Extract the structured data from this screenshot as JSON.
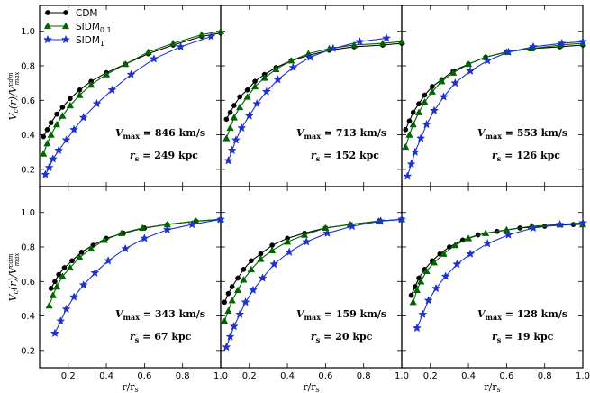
{
  "chart_data": {
    "type": "line",
    "layout": "2x3 panel grid with shared axes",
    "xlabel": "r/r_s",
    "ylabel": "V_c(r)/V_max^cdm",
    "xlim": [
      0.05,
      1.0
    ],
    "ylim": [
      0.1,
      1.15
    ],
    "xticks": [
      "0.2",
      "0.4",
      "0.6",
      "0.8",
      "1.0"
    ],
    "yticks": [
      "0.2",
      "0.4",
      "0.6",
      "0.8",
      "1.0"
    ],
    "legend": {
      "placement": "top-left of first panel",
      "entries": [
        {
          "label": "CDM",
          "color": "#000000",
          "marker": "circle"
        },
        {
          "label": "SIDM",
          "subscript": "0.1",
          "color": "#006400",
          "marker": "triangle"
        },
        {
          "label": "SIDM",
          "subscript": "1",
          "color": "#1f33cc",
          "marker": "star"
        }
      ]
    },
    "panels": [
      {
        "annotation": {
          "vmax_label": "V",
          "vmax_sub": "max",
          "vmax_eq": "= 846 km/s",
          "rs_label": "r",
          "rs_sub": "s",
          "rs_eq": "= 249 kpc"
        },
        "series": [
          {
            "name": "CDM",
            "x": [
              0.07,
              0.09,
              0.11,
              0.14,
              0.17,
              0.21,
              0.26,
              0.32,
              0.4,
              0.5,
              0.62,
              0.75,
              0.9,
              1.0
            ],
            "y": [
              0.39,
              0.43,
              0.47,
              0.52,
              0.56,
              0.61,
              0.66,
              0.71,
              0.76,
              0.81,
              0.87,
              0.92,
              0.97,
              0.99
            ]
          },
          {
            "name": "SIDM_0.1",
            "x": [
              0.07,
              0.09,
              0.11,
              0.14,
              0.17,
              0.21,
              0.26,
              0.32,
              0.4,
              0.5,
              0.62,
              0.75,
              0.9,
              1.0
            ],
            "y": [
              0.29,
              0.35,
              0.4,
              0.46,
              0.51,
              0.57,
              0.63,
              0.69,
              0.75,
              0.81,
              0.88,
              0.93,
              0.98,
              1.0
            ]
          },
          {
            "name": "SIDM_1",
            "x": [
              0.08,
              0.1,
              0.12,
              0.15,
              0.19,
              0.23,
              0.28,
              0.35,
              0.43,
              0.53,
              0.65,
              0.79,
              0.95
            ],
            "y": [
              0.17,
              0.21,
              0.26,
              0.31,
              0.37,
              0.43,
              0.5,
              0.58,
              0.66,
              0.75,
              0.84,
              0.91,
              0.97
            ]
          }
        ]
      },
      {
        "annotation": {
          "vmax_label": "V",
          "vmax_sub": "max",
          "vmax_eq": "= 713 km/s",
          "rs_label": "r",
          "rs_sub": "s",
          "rs_eq": "= 152 kpc"
        },
        "series": [
          {
            "name": "CDM",
            "x": [
              0.08,
              0.1,
              0.12,
              0.15,
              0.19,
              0.23,
              0.28,
              0.34,
              0.42,
              0.51,
              0.62,
              0.75,
              0.9,
              1.0
            ],
            "y": [
              0.49,
              0.53,
              0.57,
              0.62,
              0.66,
              0.71,
              0.75,
              0.79,
              0.83,
              0.86,
              0.89,
              0.91,
              0.92,
              0.93
            ]
          },
          {
            "name": "SIDM_0.1",
            "x": [
              0.08,
              0.1,
              0.12,
              0.15,
              0.19,
              0.23,
              0.28,
              0.34,
              0.42,
              0.51,
              0.62,
              0.75,
              0.9,
              1.0
            ],
            "y": [
              0.38,
              0.44,
              0.5,
              0.56,
              0.62,
              0.68,
              0.73,
              0.78,
              0.83,
              0.87,
              0.9,
              0.92,
              0.93,
              0.94
            ]
          },
          {
            "name": "SIDM_1",
            "x": [
              0.09,
              0.11,
              0.13,
              0.16,
              0.2,
              0.24,
              0.29,
              0.35,
              0.43,
              0.52,
              0.64,
              0.78,
              0.92
            ],
            "y": [
              0.25,
              0.31,
              0.37,
              0.44,
              0.51,
              0.58,
              0.65,
              0.72,
              0.79,
              0.85,
              0.9,
              0.94,
              0.96
            ]
          }
        ]
      },
      {
        "annotation": {
          "vmax_label": "V",
          "vmax_sub": "max",
          "vmax_eq": "= 553 km/s",
          "rs_label": "r",
          "rs_sub": "s",
          "rs_eq": "= 126 kpc"
        },
        "series": [
          {
            "name": "CDM",
            "x": [
              0.07,
              0.09,
              0.11,
              0.14,
              0.17,
              0.21,
              0.26,
              0.32,
              0.4,
              0.49,
              0.6,
              0.73,
              0.88,
              1.0
            ],
            "y": [
              0.43,
              0.48,
              0.53,
              0.58,
              0.63,
              0.68,
              0.72,
              0.77,
              0.81,
              0.85,
              0.88,
              0.9,
              0.91,
              0.92
            ]
          },
          {
            "name": "SIDM_0.1",
            "x": [
              0.07,
              0.09,
              0.11,
              0.14,
              0.17,
              0.21,
              0.26,
              0.32,
              0.4,
              0.49,
              0.6,
              0.73,
              0.88,
              1.0
            ],
            "y": [
              0.33,
              0.4,
              0.46,
              0.53,
              0.59,
              0.65,
              0.71,
              0.76,
              0.81,
              0.85,
              0.88,
              0.9,
              0.92,
              0.93
            ]
          },
          {
            "name": "SIDM_1",
            "x": [
              0.08,
              0.1,
              0.12,
              0.15,
              0.18,
              0.22,
              0.27,
              0.33,
              0.41,
              0.5,
              0.61,
              0.74,
              0.89,
              1.0
            ],
            "y": [
              0.16,
              0.23,
              0.3,
              0.38,
              0.46,
              0.54,
              0.62,
              0.7,
              0.77,
              0.83,
              0.88,
              0.91,
              0.93,
              0.94
            ]
          }
        ]
      },
      {
        "annotation": {
          "vmax_label": "V",
          "vmax_sub": "max",
          "vmax_eq": "= 343 km/s",
          "rs_label": "r",
          "rs_sub": "s",
          "rs_eq": "= 67 kpc"
        },
        "series": [
          {
            "name": "CDM",
            "x": [
              0.11,
              0.13,
              0.15,
              0.18,
              0.22,
              0.27,
              0.33,
              0.4,
              0.49,
              0.6,
              0.72,
              0.87,
              1.0
            ],
            "y": [
              0.56,
              0.6,
              0.64,
              0.68,
              0.72,
              0.77,
              0.81,
              0.85,
              0.88,
              0.91,
              0.93,
              0.95,
              0.96
            ]
          },
          {
            "name": "SIDM_0.1",
            "x": [
              0.1,
              0.12,
              0.14,
              0.17,
              0.21,
              0.26,
              0.32,
              0.39,
              0.48,
              0.59,
              0.72,
              0.87,
              1.0
            ],
            "y": [
              0.46,
              0.52,
              0.57,
              0.63,
              0.68,
              0.74,
              0.79,
              0.84,
              0.88,
              0.91,
              0.93,
              0.95,
              0.96
            ]
          },
          {
            "name": "SIDM_1",
            "x": [
              0.13,
              0.16,
              0.19,
              0.23,
              0.28,
              0.34,
              0.41,
              0.5,
              0.6,
              0.72,
              0.85,
              1.0
            ],
            "y": [
              0.3,
              0.37,
              0.44,
              0.51,
              0.58,
              0.65,
              0.72,
              0.79,
              0.85,
              0.9,
              0.93,
              0.96
            ]
          }
        ]
      },
      {
        "annotation": {
          "vmax_label": "V",
          "vmax_sub": "max",
          "vmax_eq": "= 159 km/s",
          "rs_label": "r",
          "rs_sub": "s",
          "rs_eq": "= 20 kpc"
        },
        "series": [
          {
            "name": "CDM",
            "x": [
              0.07,
              0.09,
              0.11,
              0.14,
              0.17,
              0.21,
              0.26,
              0.32,
              0.4,
              0.49,
              0.6,
              0.73,
              0.88,
              1.0
            ],
            "y": [
              0.48,
              0.53,
              0.57,
              0.62,
              0.67,
              0.72,
              0.76,
              0.81,
              0.85,
              0.88,
              0.91,
              0.93,
              0.95,
              0.96
            ]
          },
          {
            "name": "SIDM_0.1",
            "x": [
              0.07,
              0.09,
              0.11,
              0.14,
              0.17,
              0.21,
              0.26,
              0.32,
              0.4,
              0.49,
              0.6,
              0.73,
              0.88,
              1.0
            ],
            "y": [
              0.37,
              0.43,
              0.49,
              0.55,
              0.61,
              0.67,
              0.73,
              0.78,
              0.83,
              0.87,
              0.91,
              0.93,
              0.95,
              0.96
            ]
          },
          {
            "name": "SIDM_1",
            "x": [
              0.08,
              0.1,
              0.12,
              0.15,
              0.18,
              0.22,
              0.27,
              0.33,
              0.41,
              0.5,
              0.61,
              0.74,
              0.89,
              1.0
            ],
            "y": [
              0.22,
              0.28,
              0.34,
              0.41,
              0.48,
              0.55,
              0.62,
              0.7,
              0.77,
              0.83,
              0.88,
              0.92,
              0.95,
              0.96
            ]
          }
        ]
      },
      {
        "annotation": {
          "vmax_label": "V",
          "vmax_sub": "max",
          "vmax_eq": "= 128 km/s",
          "rs_label": "r",
          "rs_sub": "s",
          "rs_eq": "= 19 kpc"
        },
        "series": [
          {
            "name": "CDM",
            "x": [
              0.1,
              0.12,
              0.14,
              0.17,
              0.21,
              0.25,
              0.3,
              0.37,
              0.45,
              0.55,
              0.67,
              0.8,
              0.95
            ],
            "y": [
              0.52,
              0.57,
              0.62,
              0.67,
              0.72,
              0.76,
              0.8,
              0.84,
              0.87,
              0.89,
              0.91,
              0.92,
              0.93
            ]
          },
          {
            "name": "SIDM_0.1",
            "x": [
              0.11,
              0.13,
              0.15,
              0.18,
              0.22,
              0.27,
              0.33,
              0.4,
              0.49,
              0.6,
              0.73,
              0.88,
              1.0
            ],
            "y": [
              0.48,
              0.55,
              0.6,
              0.66,
              0.71,
              0.76,
              0.81,
              0.85,
              0.88,
              0.9,
              0.92,
              0.93,
              0.93
            ]
          },
          {
            "name": "SIDM_1",
            "x": [
              0.13,
              0.16,
              0.19,
              0.23,
              0.28,
              0.34,
              0.41,
              0.5,
              0.61,
              0.74,
              0.88,
              1.0
            ],
            "y": [
              0.33,
              0.41,
              0.49,
              0.56,
              0.63,
              0.7,
              0.76,
              0.82,
              0.87,
              0.91,
              0.93,
              0.94
            ]
          }
        ]
      }
    ]
  }
}
